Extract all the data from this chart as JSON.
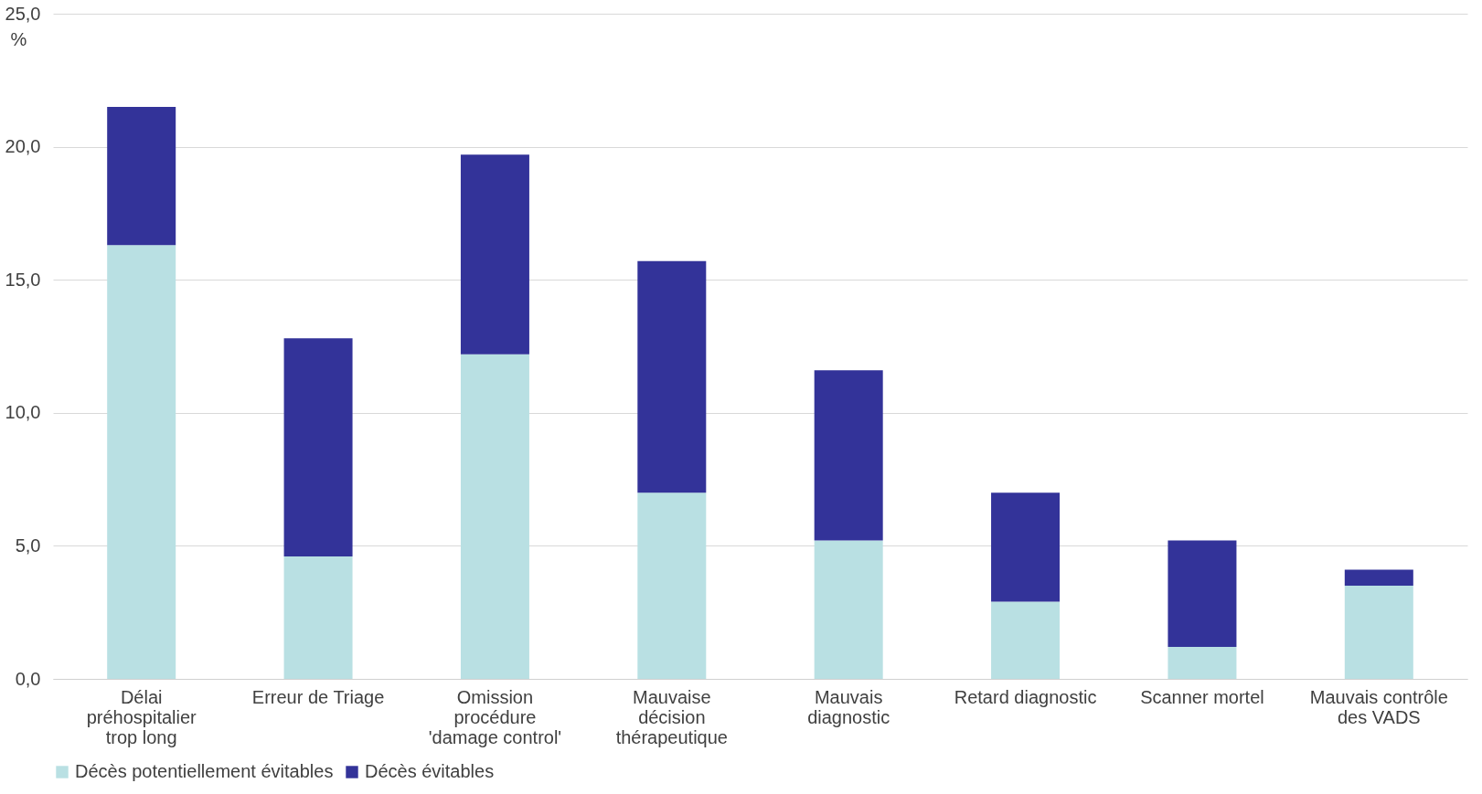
{
  "chart_data": {
    "type": "bar",
    "stacked": true,
    "ylabel": "%",
    "categories": [
      "Délai\npréhospitalier\ntrop long",
      "Erreur de Triage",
      "Omission\nprocédure\n'damage control'",
      "Mauvaise\ndécision\nthérapeutique",
      "Mauvais\ndiagnostic",
      "Retard diagnostic",
      "Scanner mortel",
      "Mauvais contrôle\ndes VADS"
    ],
    "series": [
      {
        "name": "Décès potentiellement évitables",
        "color": "#b9e0e3",
        "values": [
          16.3,
          4.6,
          12.2,
          7.0,
          5.2,
          2.9,
          1.2,
          3.5
        ]
      },
      {
        "name": "Décès évitables",
        "color": "#333399",
        "values": [
          5.2,
          8.2,
          7.5,
          8.7,
          6.4,
          4.1,
          4.0,
          0.6
        ]
      }
    ],
    "ylim": [
      0,
      25
    ],
    "yticks": [
      {
        "value": 0,
        "label": "0,0"
      },
      {
        "value": 5,
        "label": "5,0"
      },
      {
        "value": 10,
        "label": "10,0"
      },
      {
        "value": 15,
        "label": "15,0"
      },
      {
        "value": 20,
        "label": "20,0"
      },
      {
        "value": 25,
        "label": "25,0"
      }
    ],
    "grid": "y",
    "legend": "bottom"
  }
}
